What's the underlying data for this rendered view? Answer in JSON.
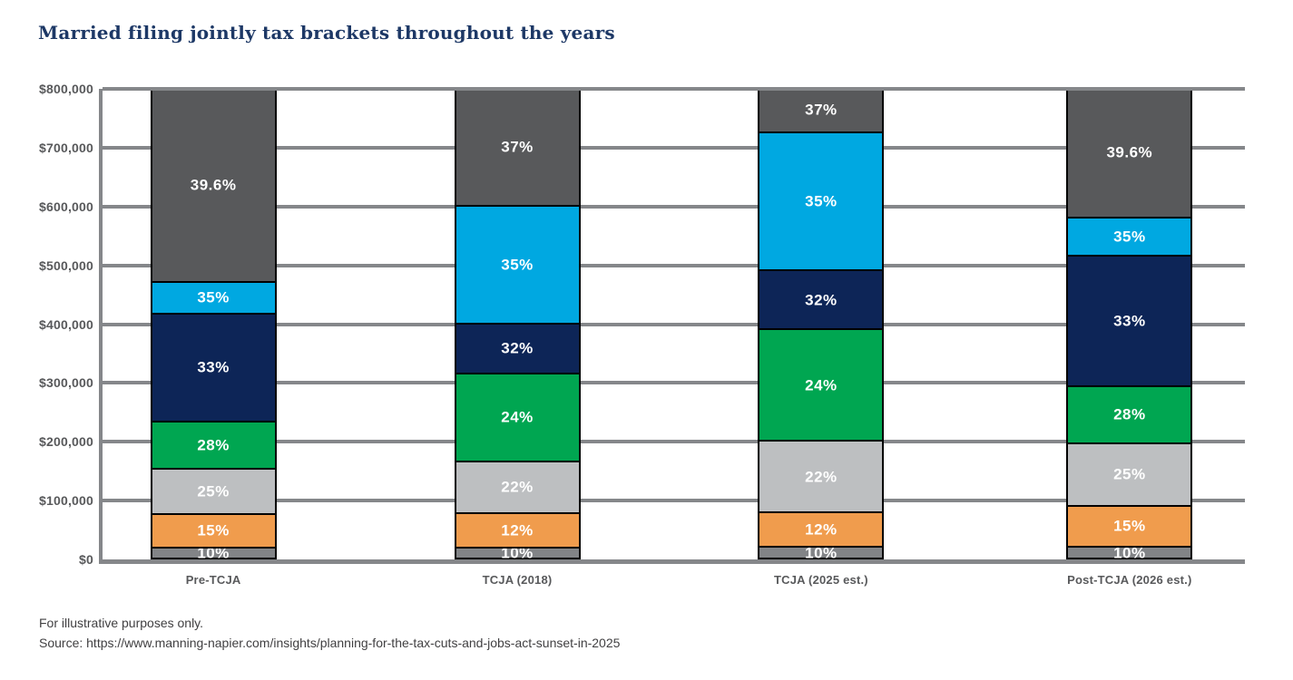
{
  "title": "Married filing jointly tax brackets throughout the years",
  "footer": {
    "line1": "For illustrative purposes only.",
    "line2": "Source: https://www.manning-napier.com/insights/planning-for-the-tax-cuts-and-jobs-act-sunset-in-2025"
  },
  "colors": {
    "title_navy": "#1d3866",
    "axis_gray": "#85878a",
    "tick_text": "#58595b",
    "segment_border": "#000000",
    "label_text": "#ffffff"
  },
  "chart_data": {
    "type": "bar",
    "stacked": true,
    "grid": true,
    "ylim": [
      0,
      800000
    ],
    "ytick_step": 100000,
    "ytick_labels": [
      "$0",
      "$100,000",
      "$200,000",
      "$300,000",
      "$400,000",
      "$500,000",
      "$600,000",
      "$700,000",
      "$800,000"
    ],
    "categories": [
      "Pre-TCJA",
      "TCJA (2018)",
      "TCJA (2025 est.)",
      "Post-TCJA (2026 est.)"
    ],
    "segment_colors": {
      "10%": "#828487",
      "12%": "#F09C4D",
      "15%": "#F09C4D",
      "22%": "#BDBFC1",
      "25%": "#BDBFC1",
      "24%": "#00A651",
      "28%": "#00A651",
      "32%": "#0D2557",
      "33%": "#0D2557",
      "35%": "#00A8E1",
      "37%": "#58595B",
      "39.6%": "#58595B"
    },
    "bars": [
      {
        "category": "Pre-TCJA",
        "segments": [
          {
            "label": "10%",
            "from": 0,
            "to": 18650
          },
          {
            "label": "15%",
            "from": 18650,
            "to": 75900
          },
          {
            "label": "25%",
            "from": 75900,
            "to": 153100
          },
          {
            "label": "28%",
            "from": 153100,
            "to": 233350
          },
          {
            "label": "33%",
            "from": 233350,
            "to": 416700
          },
          {
            "label": "35%",
            "from": 416700,
            "to": 470700
          },
          {
            "label": "39.6%",
            "from": 470700,
            "to": 800000
          }
        ]
      },
      {
        "category": "TCJA (2018)",
        "segments": [
          {
            "label": "10%",
            "from": 0,
            "to": 19050
          },
          {
            "label": "12%",
            "from": 19050,
            "to": 77400
          },
          {
            "label": "22%",
            "from": 77400,
            "to": 165000
          },
          {
            "label": "24%",
            "from": 165000,
            "to": 315000
          },
          {
            "label": "32%",
            "from": 315000,
            "to": 400000
          },
          {
            "label": "35%",
            "from": 400000,
            "to": 600000
          },
          {
            "label": "37%",
            "from": 600000,
            "to": 800000
          }
        ]
      },
      {
        "category": "TCJA (2025 est.)",
        "segments": [
          {
            "label": "10%",
            "from": 0,
            "to": 20000
          },
          {
            "label": "12%",
            "from": 20000,
            "to": 78000
          },
          {
            "label": "22%",
            "from": 78000,
            "to": 200000
          },
          {
            "label": "24%",
            "from": 200000,
            "to": 390000
          },
          {
            "label": "32%",
            "from": 390000,
            "to": 490000
          },
          {
            "label": "35%",
            "from": 490000,
            "to": 725000
          },
          {
            "label": "37%",
            "from": 725000,
            "to": 800000
          }
        ]
      },
      {
        "category": "Post-TCJA (2026 est.)",
        "segments": [
          {
            "label": "10%",
            "from": 0,
            "to": 20000
          },
          {
            "label": "15%",
            "from": 20000,
            "to": 90000
          },
          {
            "label": "25%",
            "from": 90000,
            "to": 196000
          },
          {
            "label": "28%",
            "from": 196000,
            "to": 293000
          },
          {
            "label": "33%",
            "from": 293000,
            "to": 515000
          },
          {
            "label": "35%",
            "from": 515000,
            "to": 580000
          },
          {
            "label": "39.6%",
            "from": 580000,
            "to": 800000
          }
        ]
      }
    ]
  }
}
